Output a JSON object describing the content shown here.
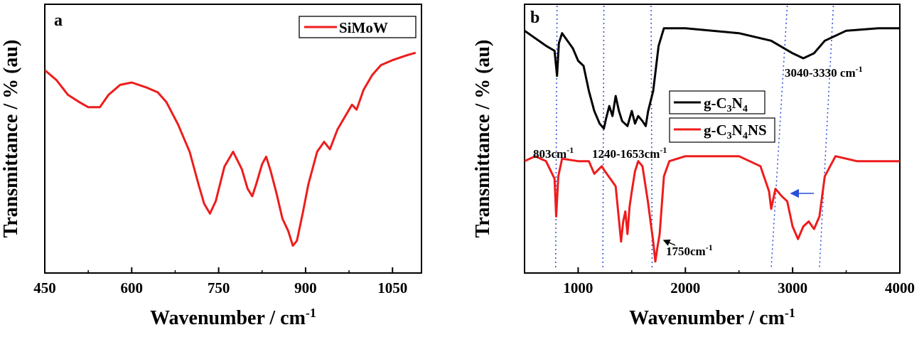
{
  "chart_data": [
    {
      "type": "line",
      "panel": "a",
      "xlabel": "Wavenumber / cm",
      "xlabel_sup": "-1",
      "ylabel": "Transmittance / % (au)",
      "xlim": [
        450,
        1100
      ],
      "ylim": [
        0,
        100
      ],
      "xticks": [
        "450",
        "600",
        "750",
        "900",
        "1050"
      ],
      "xtick_values": [
        450,
        600,
        750,
        900,
        1050
      ],
      "legend_position": "top-right",
      "series": [
        {
          "name": "SiMoW",
          "color": "#ee1c1c",
          "points": [
            [
              450,
              78
            ],
            [
              470,
              74
            ],
            [
              490,
              68
            ],
            [
              510,
              65
            ],
            [
              525,
              63
            ],
            [
              545,
              63
            ],
            [
              560,
              68
            ],
            [
              580,
              72
            ],
            [
              600,
              73
            ],
            [
              625,
              71
            ],
            [
              645,
              69
            ],
            [
              660,
              65
            ],
            [
              680,
              56
            ],
            [
              700,
              45
            ],
            [
              715,
              32
            ],
            [
              725,
              24
            ],
            [
              735,
              20
            ],
            [
              745,
              25
            ],
            [
              760,
              39
            ],
            [
              775,
              45
            ],
            [
              790,
              38
            ],
            [
              800,
              30
            ],
            [
              808,
              27
            ],
            [
              815,
              32
            ],
            [
              825,
              40
            ],
            [
              832,
              43
            ],
            [
              840,
              37
            ],
            [
              850,
              28
            ],
            [
              860,
              18
            ],
            [
              870,
              13
            ],
            [
              878,
              7
            ],
            [
              885,
              9
            ],
            [
              895,
              20
            ],
            [
              905,
              32
            ],
            [
              920,
              45
            ],
            [
              932,
              49
            ],
            [
              942,
              46
            ],
            [
              955,
              54
            ],
            [
              970,
              60
            ],
            [
              980,
              64
            ],
            [
              988,
              62
            ],
            [
              1000,
              70
            ],
            [
              1015,
              76
            ],
            [
              1030,
              80
            ],
            [
              1050,
              82
            ],
            [
              1075,
              84
            ],
            [
              1090,
              85
            ]
          ]
        }
      ]
    },
    {
      "type": "line",
      "panel": "b",
      "xlabel": "Wavenumber / cm",
      "xlabel_sup": "-1",
      "ylabel": "Transmittance / % (au)",
      "xlim": [
        500,
        4000
      ],
      "ylim": [
        0,
        100
      ],
      "xticks": [
        "1000",
        "2000",
        "3000",
        "4000"
      ],
      "xtick_values": [
        1000,
        2000,
        3000,
        4000
      ],
      "legend_position": "center",
      "series": [
        {
          "name": "g-C3N4",
          "color": "#000000",
          "points": [
            [
              500,
              94
            ],
            [
              600,
              91
            ],
            [
              700,
              88
            ],
            [
              780,
              86
            ],
            [
              803,
              76
            ],
            [
              820,
              89
            ],
            [
              850,
              93
            ],
            [
              900,
              90
            ],
            [
              950,
              87
            ],
            [
              1000,
              82
            ],
            [
              1050,
              80
            ],
            [
              1100,
              70
            ],
            [
              1150,
              62
            ],
            [
              1200,
              57
            ],
            [
              1240,
              55
            ],
            [
              1260,
              59
            ],
            [
              1290,
              64
            ],
            [
              1320,
              60
            ],
            [
              1350,
              68
            ],
            [
              1380,
              62
            ],
            [
              1410,
              58
            ],
            [
              1460,
              56
            ],
            [
              1500,
              62
            ],
            [
              1530,
              57
            ],
            [
              1560,
              60
            ],
            [
              1600,
              58
            ],
            [
              1630,
              56
            ],
            [
              1653,
              62
            ],
            [
              1700,
              70
            ],
            [
              1750,
              88
            ],
            [
              1800,
              95
            ],
            [
              2000,
              95
            ],
            [
              2500,
              93
            ],
            [
              2800,
              90
            ],
            [
              3000,
              85
            ],
            [
              3100,
              83
            ],
            [
              3200,
              85
            ],
            [
              3300,
              90
            ],
            [
              3500,
              94
            ],
            [
              3800,
              95
            ],
            [
              4000,
              95
            ]
          ]
        },
        {
          "name": "g-C3N4NS",
          "color": "#ee1c1c",
          "points": [
            [
              500,
              42
            ],
            [
              600,
              44
            ],
            [
              700,
              42
            ],
            [
              780,
              35
            ],
            [
              795,
              20
            ],
            [
              815,
              36
            ],
            [
              850,
              43
            ],
            [
              1000,
              42
            ],
            [
              1100,
              42
            ],
            [
              1150,
              37
            ],
            [
              1220,
              40
            ],
            [
              1250,
              38
            ],
            [
              1300,
              35
            ],
            [
              1350,
              32
            ],
            [
              1400,
              10
            ],
            [
              1420,
              18
            ],
            [
              1440,
              22
            ],
            [
              1460,
              13
            ],
            [
              1480,
              24
            ],
            [
              1500,
              30
            ],
            [
              1530,
              38
            ],
            [
              1560,
              42
            ],
            [
              1600,
              40
            ],
            [
              1650,
              26
            ],
            [
              1700,
              10
            ],
            [
              1720,
              2
            ],
            [
              1740,
              8
            ],
            [
              1760,
              13
            ],
            [
              1800,
              36
            ],
            [
              1850,
              42
            ],
            [
              2000,
              44
            ],
            [
              2500,
              44
            ],
            [
              2700,
              40
            ],
            [
              2780,
              30
            ],
            [
              2800,
              23
            ],
            [
              2840,
              31
            ],
            [
              2900,
              28
            ],
            [
              2950,
              26
            ],
            [
              3000,
              16
            ],
            [
              3050,
              11
            ],
            [
              3100,
              16
            ],
            [
              3150,
              18
            ],
            [
              3200,
              15
            ],
            [
              3250,
              20
            ],
            [
              3300,
              36
            ],
            [
              3400,
              44
            ],
            [
              3600,
              42
            ],
            [
              3800,
              42
            ],
            [
              4000,
              42
            ]
          ]
        }
      ],
      "legend_entries": [
        {
          "label": "g-C",
          "sub1": "3",
          "mid": "N",
          "sub2": "4",
          "tail": ""
        },
        {
          "label": "g-C",
          "sub1": "3",
          "mid": "N",
          "sub2": "4",
          "tail": "NS"
        }
      ],
      "vlines": [
        {
          "x_top": 803,
          "x_bottom": 790
        },
        {
          "x_top": 1240,
          "x_bottom": 1230
        },
        {
          "x_top": 1680,
          "x_bottom": 1690
        },
        {
          "x_top": 2950,
          "x_bottom": 2800
        },
        {
          "x_top": 3380,
          "x_bottom": 3250
        }
      ],
      "annotations": {
        "a803": "803cm",
        "a803_sup": "-1",
        "a1240": "1240-1653cm",
        "a1240_sup": "-1",
        "a3040": "3040-3330 cm",
        "a3040_sup": "-1",
        "a1750": "1750cm",
        "a1750_sup": "-1"
      }
    }
  ]
}
